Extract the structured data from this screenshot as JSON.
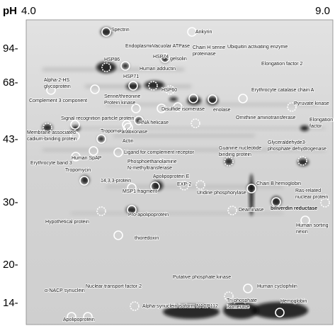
{
  "header": {
    "ph_label": "pH",
    "ph_start": "4.0",
    "ph_end": "9.0"
  },
  "mw_labels": [
    "94-",
    "68-",
    "43-",
    "30-",
    "20-",
    "14-"
  ],
  "proteins": [
    [
      "Spectrin"
    ],
    [
      "Ankyrin"
    ],
    [
      "Endoplasmin"
    ],
    [
      "Vacuolar ATPase"
    ],
    [
      "Chain H serine",
      "proteinase"
    ],
    [
      "Ubiquitin activating enzyme"
    ],
    [
      "gelsolin"
    ],
    [
      "HSP86"
    ],
    [
      "HSP74"
    ],
    [
      "Human adductin"
    ],
    [
      "Elongation factor 2"
    ],
    [
      "Alpha-2-HS",
      "glycoprotein"
    ],
    [
      "HSP71"
    ],
    [
      "HSP60"
    ],
    [
      "Complement 3 component"
    ],
    [
      "Serine/threonine",
      "Protein kinase"
    ],
    [
      "Erythrocyte catalase chain A"
    ],
    [
      "Pyruvate kinase"
    ],
    [
      "Signal recognition particle protein"
    ],
    [
      "Disulfide isomerase"
    ],
    [
      "enolase"
    ],
    [
      "Ornithine aminotransferase"
    ],
    [
      "Elongation",
      "factor"
    ],
    [
      "RNA helicase"
    ],
    [
      "Tropomodulin"
    ],
    [
      "Paraoxonase"
    ],
    [
      "Membrane associated",
      "cadium-binding protein"
    ],
    [
      "Actin"
    ],
    [
      "Glyceraldehyde3-",
      "phosphate dehydrogenase"
    ],
    [
      "Erythrocyte band 3"
    ],
    [
      "Human SpAP"
    ],
    [
      "Ligand for complement receptor"
    ],
    [
      "Guanine nucleotide",
      "binding protein"
    ],
    [
      "Phosphoethanolamine",
      "N-methyltransferase"
    ],
    [
      "Tropomycin"
    ],
    [
      "14,3,3-protein"
    ],
    [
      "Apolipoprotein E"
    ],
    [
      "EXP-2"
    ],
    [
      "MSP1 fragment"
    ],
    [
      "Uridine phosphorylase"
    ],
    [
      "Chain B hemoglobin"
    ],
    [
      "Ras-related",
      "nuclear protein"
    ],
    [
      "biliverdin reductase"
    ],
    [
      "Deaminase"
    ],
    [
      "Pro-apolipoprotein"
    ],
    [
      "Human sorting",
      "nexin"
    ],
    [
      "Hypothetical protein"
    ],
    [
      "thioredoxin"
    ],
    [
      "Putative phosphate kinase"
    ],
    [
      "Nuclear transport factor 2"
    ],
    [
      "Human cyclophilin"
    ],
    [
      "α-NACP synuclein"
    ],
    [
      "Tri-phosphate",
      "isomerase"
    ],
    [
      "Alpha-synuclein isoform NACP112"
    ],
    [
      "Hemoglobin"
    ],
    [
      "Apolipoprotein"
    ]
  ]
}
